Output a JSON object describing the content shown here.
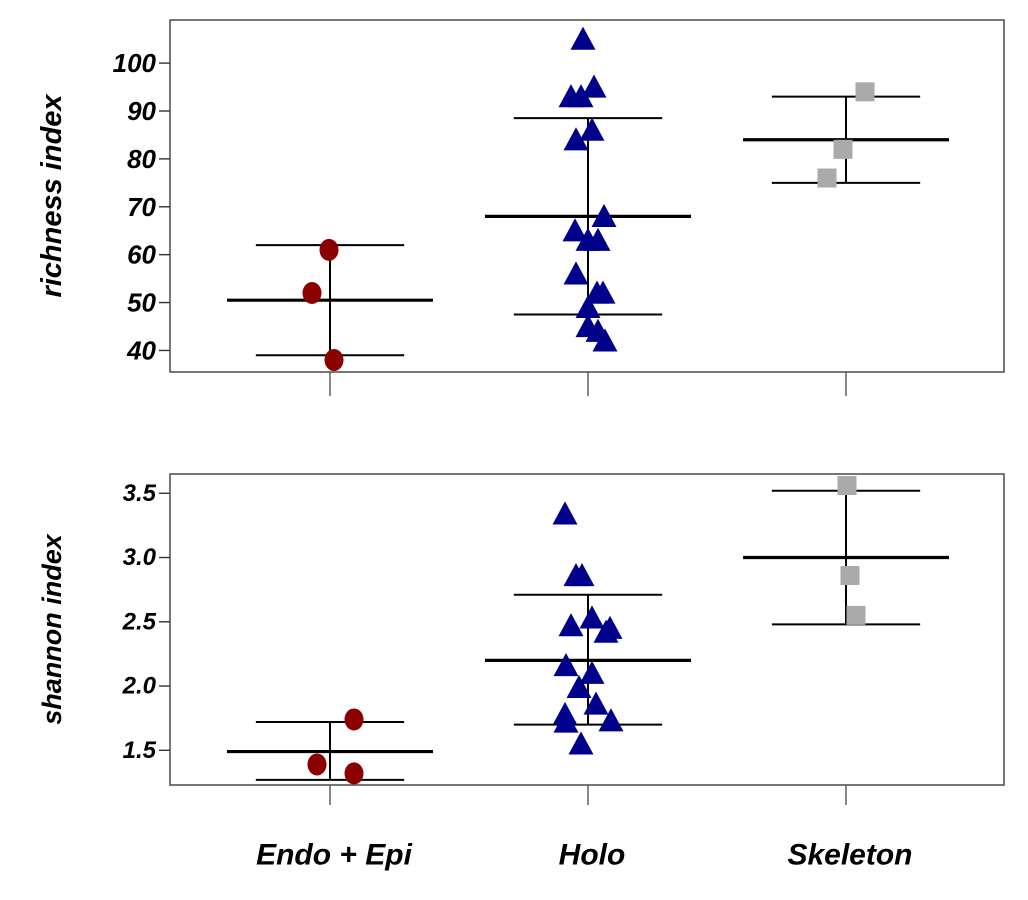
{
  "categories": [
    "Endo + Epi",
    "Holo",
    "Skeleton"
  ],
  "colors": {
    "Endo + Epi": "#8b0000",
    "Holo": "#00008b",
    "Skeleton": "#aaaaaa",
    "frame": "#555555",
    "bars": "#000000"
  },
  "markers": {
    "Endo + Epi": "circle",
    "Holo": "triangle",
    "Skeleton": "square"
  },
  "chart_data": [
    {
      "type": "scatter",
      "ylabel": "richness index",
      "ylim": [
        35.5,
        109
      ],
      "yticks": [
        40,
        50,
        60,
        70,
        80,
        90,
        100
      ],
      "ytick_labels": [
        "40",
        "50",
        "60",
        "70",
        "80",
        "90",
        "100"
      ],
      "categories": [
        "Endo + Epi",
        "Holo",
        "Skeleton"
      ],
      "summary": [
        {
          "category": "Endo + Epi",
          "mean": 50.5,
          "lower": 39,
          "upper": 62
        },
        {
          "category": "Holo",
          "mean": 68,
          "lower": 47.5,
          "upper": 88.5
        },
        {
          "category": "Skeleton",
          "mean": 84,
          "lower": 75,
          "upper": 93
        }
      ],
      "series": [
        {
          "category": "Endo + Epi",
          "points": [
            {
              "x": -0.18,
              "y": 52
            },
            {
              "x": -0.01,
              "y": 61
            },
            {
              "x": 0.04,
              "y": 38
            }
          ]
        },
        {
          "category": "Holo",
          "points": [
            {
              "x": -0.17,
              "y": 93
            },
            {
              "x": -0.07,
              "y": 93
            },
            {
              "x": 0.06,
              "y": 95
            },
            {
              "x": -0.05,
              "y": 105
            },
            {
              "x": -0.12,
              "y": 84
            },
            {
              "x": 0.04,
              "y": 86
            },
            {
              "x": -0.13,
              "y": 65
            },
            {
              "x": 0.0,
              "y": 63
            },
            {
              "x": 0.16,
              "y": 68
            },
            {
              "x": 0.1,
              "y": 63
            },
            {
              "x": -0.12,
              "y": 56
            },
            {
              "x": 0.0,
              "y": 49
            },
            {
              "x": 0.09,
              "y": 52
            },
            {
              "x": 0.15,
              "y": 52
            },
            {
              "x": 0.0,
              "y": 45
            },
            {
              "x": 0.1,
              "y": 44
            },
            {
              "x": 0.17,
              "y": 42
            }
          ]
        },
        {
          "category": "Skeleton",
          "points": [
            {
              "x": -0.19,
              "y": 76
            },
            {
              "x": -0.03,
              "y": 82
            },
            {
              "x": 0.19,
              "y": 94
            }
          ]
        }
      ]
    },
    {
      "type": "scatter",
      "ylabel": "shannon index",
      "ylim": [
        1.23,
        3.65
      ],
      "yticks": [
        1.5,
        2.0,
        2.5,
        3.0,
        3.5
      ],
      "ytick_labels": [
        "1.5",
        "2.0",
        "2.5",
        "3.0",
        "3.5"
      ],
      "categories": [
        "Endo + Epi",
        "Holo",
        "Skeleton"
      ],
      "summary": [
        {
          "category": "Endo + Epi",
          "mean": 1.49,
          "lower": 1.27,
          "upper": 1.72
        },
        {
          "category": "Holo",
          "mean": 2.2,
          "lower": 1.7,
          "upper": 2.71
        },
        {
          "category": "Skeleton",
          "mean": 3.0,
          "lower": 2.48,
          "upper": 3.52
        }
      ],
      "series": [
        {
          "category": "Endo + Epi",
          "points": [
            {
              "x": -0.13,
              "y": 1.39
            },
            {
              "x": 0.24,
              "y": 1.74
            },
            {
              "x": 0.24,
              "y": 1.32
            }
          ]
        },
        {
          "category": "Holo",
          "points": [
            {
              "x": -0.23,
              "y": 3.34
            },
            {
              "x": -0.12,
              "y": 2.86
            },
            {
              "x": -0.06,
              "y": 2.86
            },
            {
              "x": -0.17,
              "y": 2.47
            },
            {
              "x": 0.04,
              "y": 2.53
            },
            {
              "x": 0.18,
              "y": 2.42
            },
            {
              "x": 0.22,
              "y": 2.45
            },
            {
              "x": -0.22,
              "y": 2.16
            },
            {
              "x": -0.09,
              "y": 1.99
            },
            {
              "x": 0.04,
              "y": 2.1
            },
            {
              "x": 0.08,
              "y": 1.86
            },
            {
              "x": -0.23,
              "y": 1.78
            },
            {
              "x": -0.22,
              "y": 1.72
            },
            {
              "x": -0.07,
              "y": 1.55
            },
            {
              "x": 0.23,
              "y": 1.73
            }
          ]
        },
        {
          "category": "Skeleton",
          "points": [
            {
              "x": 0.01,
              "y": 3.56
            },
            {
              "x": 0.04,
              "y": 2.86
            },
            {
              "x": 0.1,
              "y": 2.55
            }
          ]
        }
      ]
    }
  ]
}
